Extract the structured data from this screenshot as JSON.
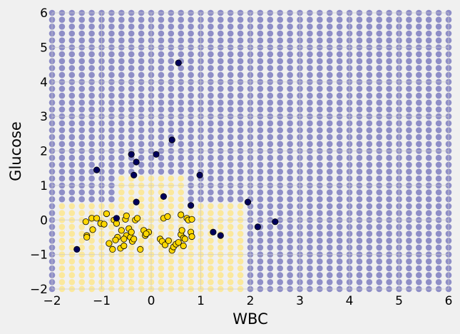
{
  "chart_data": {
    "type": "scatter",
    "title": "",
    "xlabel": "WBC",
    "ylabel": "Glucose",
    "xlim": [
      -2,
      6
    ],
    "ylim": [
      -2,
      6
    ],
    "xticks": [
      -2,
      -1,
      0,
      1,
      2,
      3,
      4,
      5,
      6
    ],
    "yticks": [
      -2,
      -1,
      0,
      1,
      2,
      3,
      4,
      5,
      6
    ],
    "grid": true,
    "background": {
      "description": "decision-region grid of predicted class",
      "step": 0.2,
      "colors": {
        "class_0": "#ffe680",
        "class_1": "#7c7cbf"
      },
      "class_0_region": [
        {
          "x_from": -1.8,
          "x_to": 1.8,
          "y_from": -2.0,
          "y_to": 0.4
        },
        {
          "x_from": -0.6,
          "x_to": 0.6,
          "y_from": 0.6,
          "y_to": 1.2
        }
      ]
    },
    "series": [
      {
        "color": "#ffd700",
        "points": [
          [
            -1.32,
            -0.05
          ],
          [
            -1.2,
            0.05
          ],
          [
            -1.1,
            0.05
          ],
          [
            -1.02,
            -0.1
          ],
          [
            -0.95,
            -0.12
          ],
          [
            -1.3,
            -0.45
          ],
          [
            -1.3,
            -0.5
          ],
          [
            -1.18,
            -0.28
          ],
          [
            -0.9,
            0.18
          ],
          [
            -0.75,
            0.0
          ],
          [
            -0.7,
            -0.1
          ],
          [
            -0.68,
            -0.5
          ],
          [
            -0.72,
            -0.58
          ],
          [
            -0.85,
            -0.68
          ],
          [
            -0.78,
            -0.85
          ],
          [
            -0.62,
            -0.82
          ],
          [
            -0.55,
            -0.75
          ],
          [
            -0.5,
            -0.45
          ],
          [
            -0.52,
            0.02
          ],
          [
            -0.5,
            0.12
          ],
          [
            -0.45,
            -0.25
          ],
          [
            -0.42,
            -0.5
          ],
          [
            -0.38,
            -0.62
          ],
          [
            -0.32,
            0.0
          ],
          [
            -0.28,
            0.05
          ],
          [
            -0.22,
            -0.85
          ],
          [
            -0.15,
            -0.3
          ],
          [
            -0.12,
            -0.45
          ],
          [
            -0.05,
            -0.35
          ],
          [
            -0.1,
            -0.4
          ],
          [
            0.18,
            -0.55
          ],
          [
            0.22,
            -0.62
          ],
          [
            0.25,
            0.05
          ],
          [
            0.28,
            -0.72
          ],
          [
            0.33,
            0.1
          ],
          [
            0.35,
            -0.6
          ],
          [
            0.42,
            -0.88
          ],
          [
            0.45,
            -0.78
          ],
          [
            0.5,
            -0.7
          ],
          [
            0.55,
            -0.65
          ],
          [
            0.6,
            -0.42
          ],
          [
            0.62,
            -0.3
          ],
          [
            0.6,
            0.15
          ],
          [
            0.65,
            -0.52
          ],
          [
            0.65,
            -0.75
          ],
          [
            0.68,
            -0.55
          ],
          [
            0.72,
            0.05
          ],
          [
            0.75,
            0.0
          ],
          [
            0.8,
            -0.35
          ],
          [
            0.82,
            -0.48
          ],
          [
            0.82,
            0.02
          ],
          [
            -0.55,
            -0.55
          ],
          [
            -0.4,
            -0.35
          ],
          [
            -0.35,
            -0.55
          ],
          [
            -0.6,
            -0.3
          ]
        ]
      },
      {
        "color": "#00005a",
        "points": [
          [
            -1.5,
            -0.85
          ],
          [
            -1.1,
            1.45
          ],
          [
            -0.7,
            0.05
          ],
          [
            -0.4,
            1.9
          ],
          [
            -0.35,
            1.3
          ],
          [
            -0.3,
            1.68
          ],
          [
            -0.3,
            0.52
          ],
          [
            0.1,
            1.9
          ],
          [
            0.25,
            0.68
          ],
          [
            0.42,
            2.32
          ],
          [
            0.55,
            4.55
          ],
          [
            0.8,
            0.42
          ],
          [
            0.98,
            1.3
          ],
          [
            1.25,
            -0.35
          ],
          [
            1.4,
            -0.45
          ],
          [
            1.95,
            0.52
          ],
          [
            2.15,
            -0.2
          ],
          [
            2.5,
            -0.05
          ]
        ]
      }
    ]
  }
}
